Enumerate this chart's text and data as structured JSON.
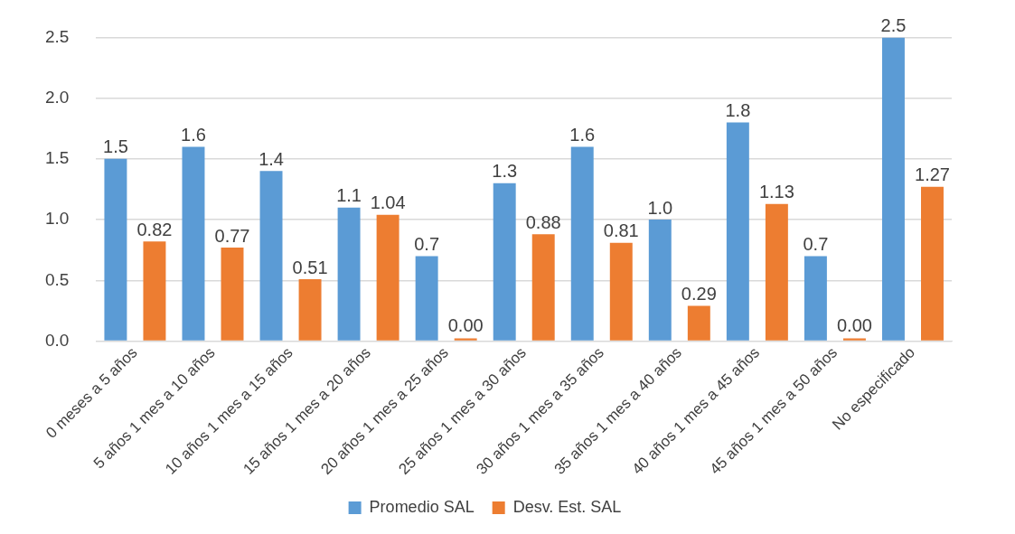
{
  "chart_data": {
    "type": "bar",
    "categories": [
      "0 meses a 5 años",
      "5 años 1 mes a 10 años",
      "10 años 1 mes a 15 años",
      "15 años 1 mes a 20 años",
      "20 años 1 mes a 25 años",
      "25 años 1 mes a 30 años",
      "30 años 1 mes a 35 años",
      "35 años 1 mes a 40 años",
      "40 años 1 mes a 45 años",
      "45 años 1 mes a 50 años",
      "No especificado"
    ],
    "series": [
      {
        "name": "Promedio SAL",
        "color": "#5b9bd5",
        "values": [
          1.5,
          1.6,
          1.4,
          1.1,
          0.7,
          1.3,
          1.6,
          1.0,
          1.8,
          0.7,
          2.5
        ],
        "value_labels": [
          "1.5",
          "1.6",
          "1.4",
          "1.1",
          "0.7",
          "1.3",
          "1.6",
          "1.0",
          "1.8",
          "0.7",
          "2.5"
        ]
      },
      {
        "name": "Desv. Est. SAL",
        "color": "#ed7d31",
        "values": [
          0.82,
          0.77,
          0.51,
          1.04,
          0.0,
          0.88,
          0.81,
          0.29,
          1.13,
          0.0,
          1.27
        ],
        "value_labels": [
          "0.82",
          "0.77",
          "0.51",
          "1.04",
          "0.00",
          "0.88",
          "0.81",
          "0.29",
          "1.13",
          "0.00",
          "1.27"
        ]
      }
    ],
    "ylim": [
      0,
      2.5
    ],
    "yticks": [
      {
        "value": 0,
        "label": "0.0"
      },
      {
        "value": 0.5,
        "label": "0.5"
      },
      {
        "value": 1,
        "label": "1.0"
      },
      {
        "value": 1.5,
        "label": "1.5"
      },
      {
        "value": 2,
        "label": "2.0"
      },
      {
        "value": 2.5,
        "label": "2.5"
      }
    ],
    "grid": "y",
    "legend": "bottom"
  }
}
